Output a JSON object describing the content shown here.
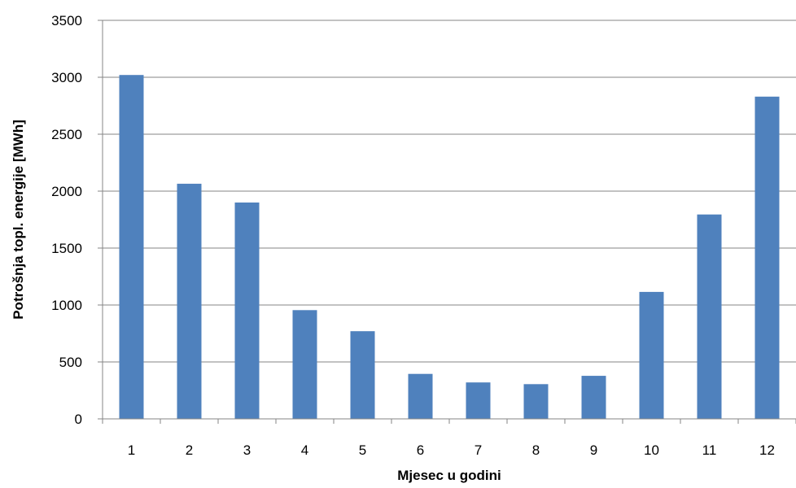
{
  "chart_data": {
    "type": "bar",
    "categories": [
      "1",
      "2",
      "3",
      "4",
      "5",
      "6",
      "7",
      "8",
      "9",
      "10",
      "11",
      "12"
    ],
    "values": [
      3020,
      2065,
      1900,
      955,
      770,
      395,
      320,
      305,
      378,
      1115,
      1795,
      2830
    ],
    "title": "",
    "xlabel": "Mjesec u godini",
    "ylabel": "Potrošnja topl. energije [MWh]",
    "ylim": [
      0,
      3500
    ],
    "yticks": [
      0,
      500,
      1000,
      1500,
      2000,
      2500,
      3000,
      3500
    ],
    "grid": true,
    "bar_color": "#4F81BD",
    "grid_color": "#868686"
  }
}
